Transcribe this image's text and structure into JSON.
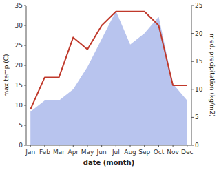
{
  "chart_data": {
    "type": "line",
    "xlabel": "date (month)",
    "ylabel": "max temp (C)",
    "y2label": "med. precipitation (kg/m2)",
    "categories": [
      "Jan",
      "Feb",
      "Mar",
      "Apr",
      "May",
      "Jun",
      "Jul",
      "Aug",
      "Sep",
      "Oct",
      "Nov",
      "Dec"
    ],
    "series": [
      {
        "type": "area",
        "axis": "y2",
        "color": "#b8c4ee",
        "values": [
          6,
          8,
          8,
          10,
          14,
          19,
          24,
          18,
          20,
          23,
          11,
          8
        ]
      },
      {
        "type": "line",
        "color": "#c0392b",
        "values": [
          9,
          17,
          17,
          27,
          24,
          30,
          33.5,
          33.5,
          33.5,
          30,
          15,
          15
        ]
      }
    ],
    "ylim": [
      0,
      35
    ],
    "yticks": [
      0,
      5,
      10,
      15,
      20,
      25,
      30,
      35
    ],
    "y2lim": [
      0,
      25
    ],
    "y2ticks": [
      0,
      5,
      10,
      15,
      20,
      25
    ],
    "grid": false
  }
}
